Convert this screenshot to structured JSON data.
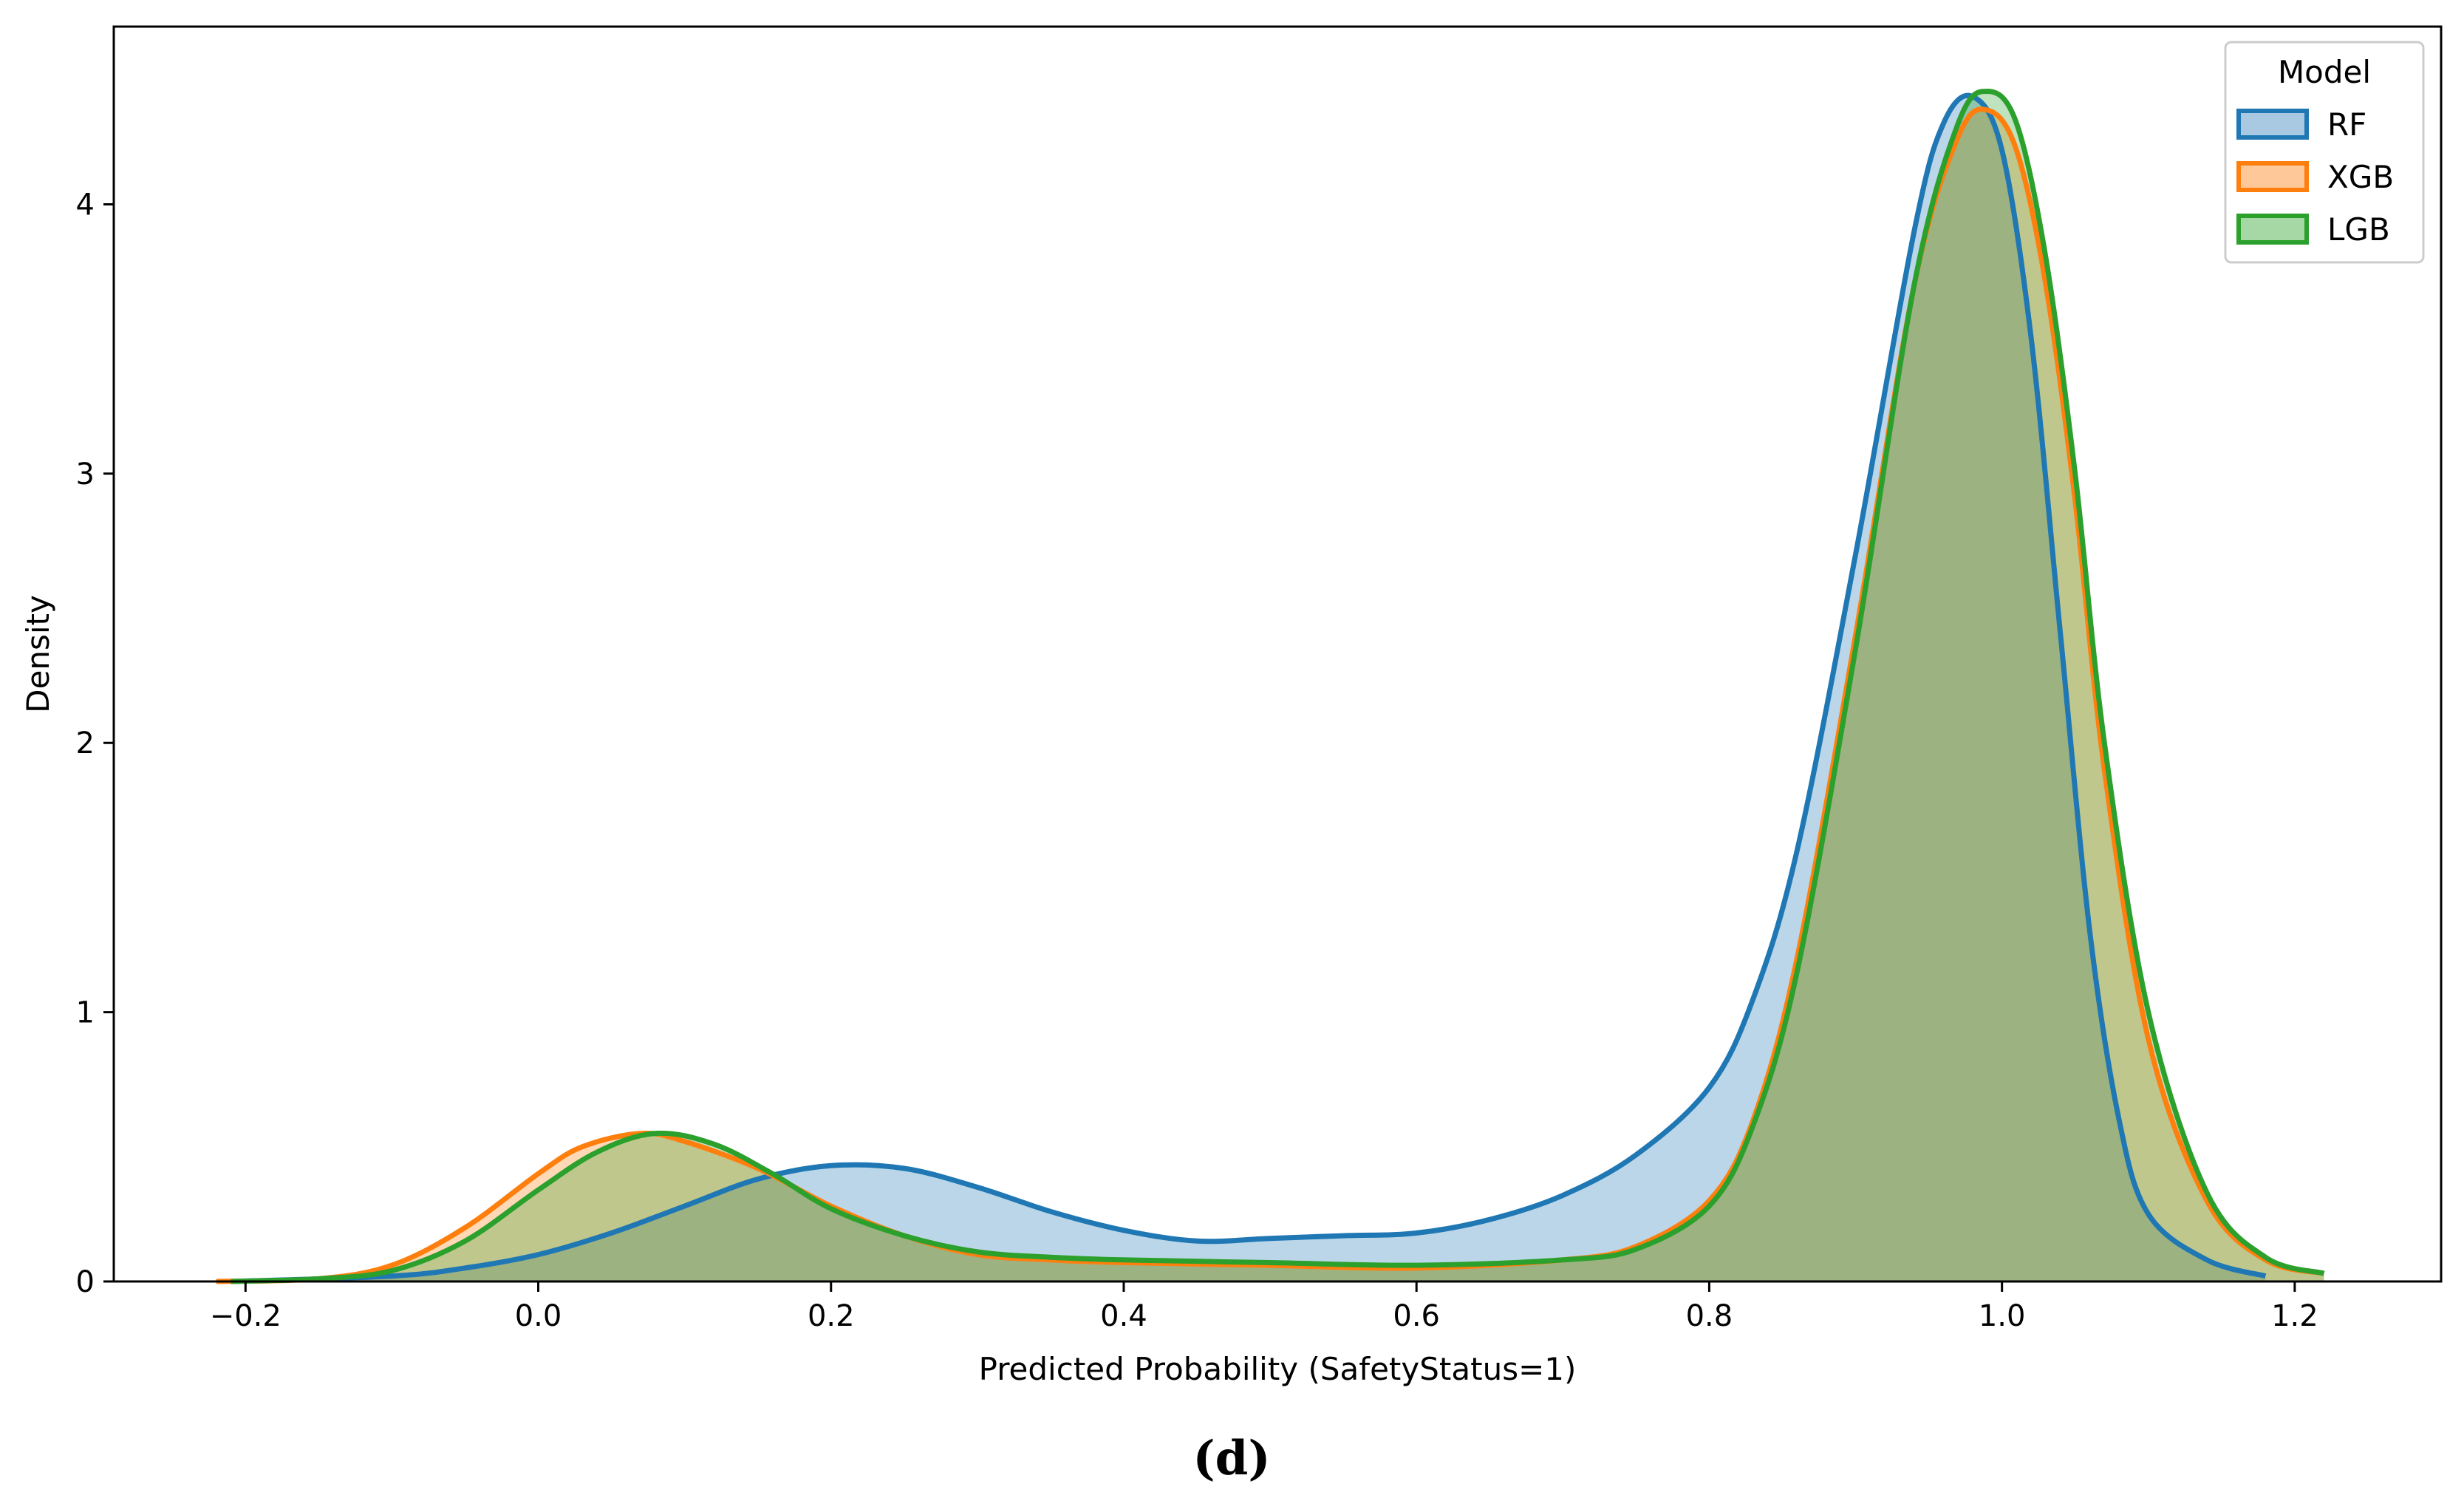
{
  "chart_data": {
    "type": "area",
    "subtype": "kde-density",
    "title": "",
    "xlabel": "Predicted Probability (SafetyStatus=1)",
    "ylabel": "Density",
    "xlim": [
      -0.29,
      1.3
    ],
    "ylim": [
      0,
      4.66
    ],
    "x_ticks": [
      -0.2,
      0.0,
      0.2,
      0.4,
      0.6,
      0.8,
      1.0,
      1.2
    ],
    "x_tick_labels": [
      "−0.2",
      "0.0",
      "0.2",
      "0.4",
      "0.6",
      "0.8",
      "1.0",
      "1.2"
    ],
    "y_ticks": [
      0,
      1,
      2,
      3,
      4
    ],
    "y_tick_labels": [
      "0",
      "1",
      "2",
      "3",
      "4"
    ],
    "grid": false,
    "legend": {
      "title": "Model",
      "placement": "top-right",
      "entries": [
        "RF",
        "XGB",
        "LGB"
      ]
    },
    "caption": "(d)",
    "fill_opacity": 0.3,
    "series": [
      {
        "name": "RF",
        "color": "#1f77b4",
        "fill": "#a9c8e2",
        "x": [
          -0.21,
          -0.1,
          -0.05,
          0.0,
          0.05,
          0.1,
          0.15,
          0.2,
          0.25,
          0.3,
          0.35,
          0.4,
          0.45,
          0.5,
          0.55,
          0.6,
          0.65,
          0.7,
          0.75,
          0.8,
          0.83,
          0.86,
          0.9,
          0.94,
          0.96,
          0.98,
          1.0,
          1.02,
          1.04,
          1.06,
          1.08,
          1.1,
          1.14,
          1.18
        ],
        "y": [
          0.0,
          0.02,
          0.05,
          0.1,
          0.18,
          0.28,
          0.38,
          0.43,
          0.42,
          0.35,
          0.26,
          0.19,
          0.15,
          0.16,
          0.17,
          0.18,
          0.23,
          0.32,
          0.47,
          0.72,
          1.05,
          1.6,
          2.7,
          3.9,
          4.3,
          4.4,
          4.2,
          3.5,
          2.4,
          1.3,
          0.6,
          0.25,
          0.08,
          0.02
        ]
      },
      {
        "name": "XGB",
        "color": "#ff7f0e",
        "fill": "#ffc899",
        "x": [
          -0.22,
          -0.15,
          -0.1,
          -0.05,
          0.0,
          0.03,
          0.07,
          0.1,
          0.15,
          0.2,
          0.25,
          0.3,
          0.35,
          0.4,
          0.5,
          0.6,
          0.7,
          0.75,
          0.8,
          0.83,
          0.86,
          0.9,
          0.94,
          0.97,
          0.99,
          1.01,
          1.03,
          1.05,
          1.07,
          1.1,
          1.14,
          1.18,
          1.22
        ],
        "y": [
          0.0,
          0.01,
          0.06,
          0.2,
          0.4,
          0.5,
          0.55,
          0.52,
          0.42,
          0.28,
          0.17,
          0.1,
          0.08,
          0.07,
          0.06,
          0.05,
          0.08,
          0.13,
          0.3,
          0.6,
          1.2,
          2.4,
          3.7,
          4.25,
          4.35,
          4.2,
          3.7,
          2.9,
          1.9,
          0.9,
          0.3,
          0.08,
          0.03
        ]
      },
      {
        "name": "LGB",
        "color": "#2ca02c",
        "fill": "#a6d8a6",
        "x": [
          -0.21,
          -0.15,
          -0.1,
          -0.05,
          0.0,
          0.04,
          0.08,
          0.12,
          0.16,
          0.2,
          0.25,
          0.3,
          0.35,
          0.4,
          0.5,
          0.6,
          0.7,
          0.75,
          0.8,
          0.83,
          0.86,
          0.9,
          0.94,
          0.97,
          0.99,
          1.01,
          1.03,
          1.05,
          1.07,
          1.1,
          1.14,
          1.18,
          1.22
        ],
        "y": [
          0.0,
          0.01,
          0.04,
          0.15,
          0.34,
          0.48,
          0.55,
          0.51,
          0.4,
          0.27,
          0.17,
          0.11,
          0.09,
          0.08,
          0.07,
          0.06,
          0.08,
          0.12,
          0.28,
          0.58,
          1.15,
          2.35,
          3.7,
          4.3,
          4.42,
          4.3,
          3.8,
          3.0,
          2.0,
          1.0,
          0.33,
          0.09,
          0.03
        ]
      }
    ]
  }
}
